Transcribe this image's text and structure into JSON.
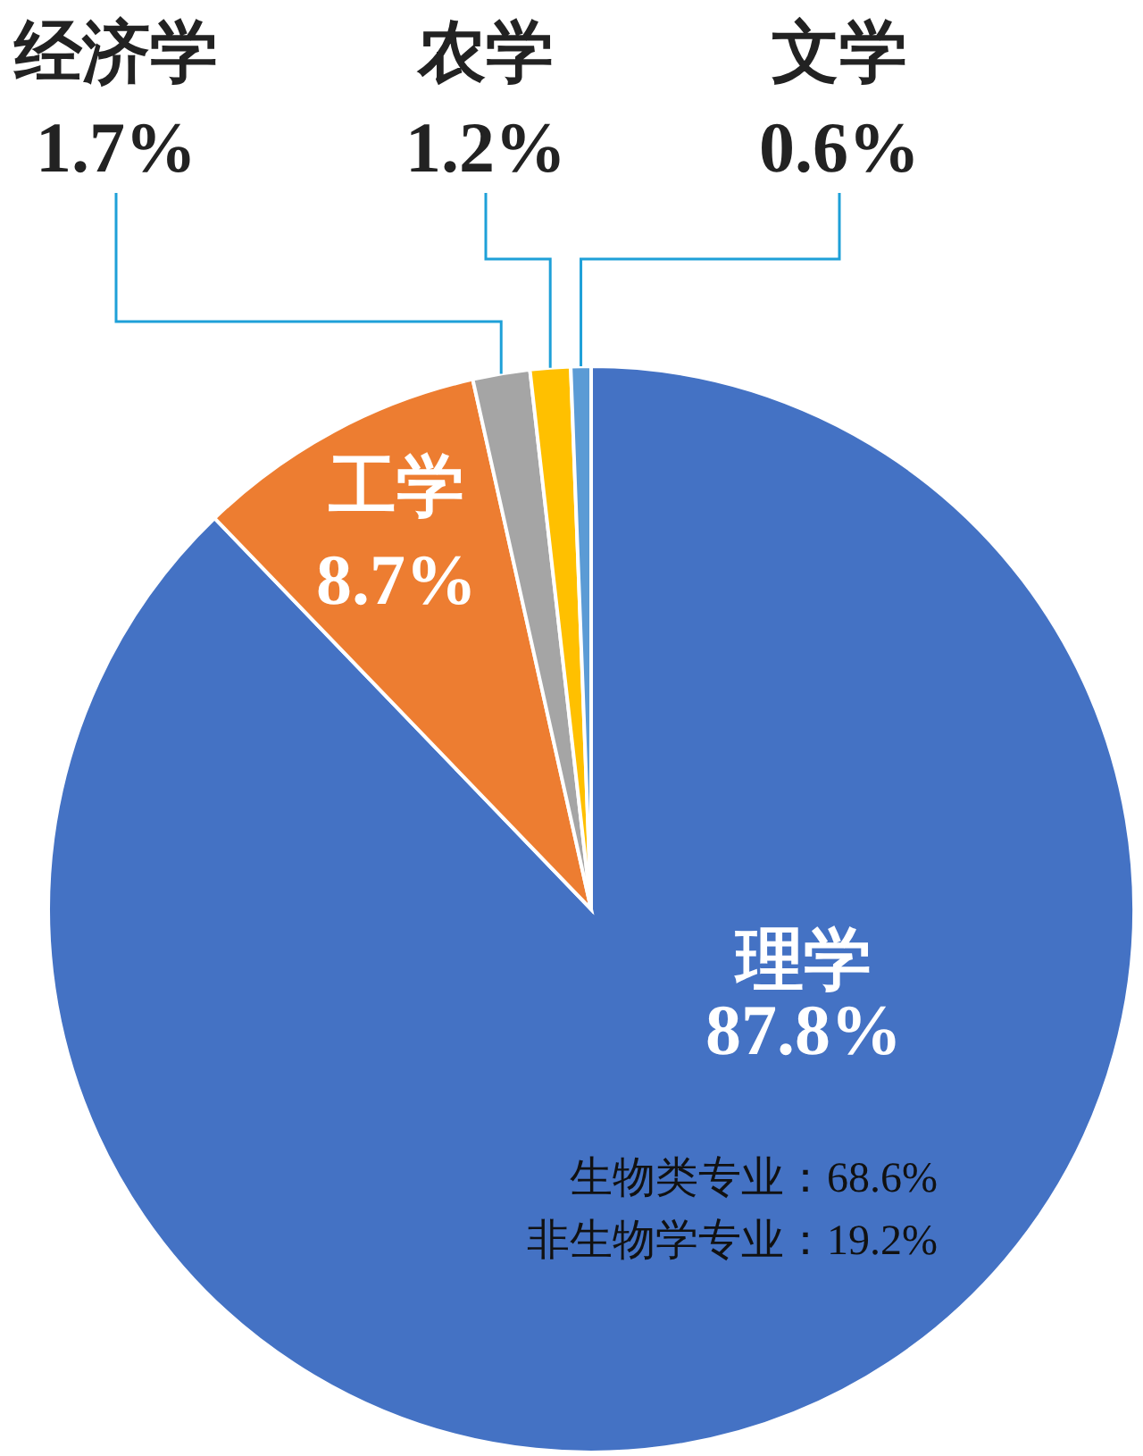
{
  "chart_data": {
    "type": "pie",
    "categories": [
      "理学",
      "工学",
      "经济学",
      "农学",
      "文学"
    ],
    "values": [
      87.8,
      8.7,
      1.7,
      1.2,
      0.6
    ],
    "colors": [
      "#4472c4",
      "#ed7d31",
      "#a5a5a5",
      "#ffc000",
      "#5b9bd5"
    ],
    "value_labels": [
      "87.8%",
      "8.7%",
      "1.7%",
      "1.2%",
      "0.6%"
    ],
    "annotations": [
      "生物类专业：68.6%",
      "非生物学专业：19.2%"
    ]
  }
}
